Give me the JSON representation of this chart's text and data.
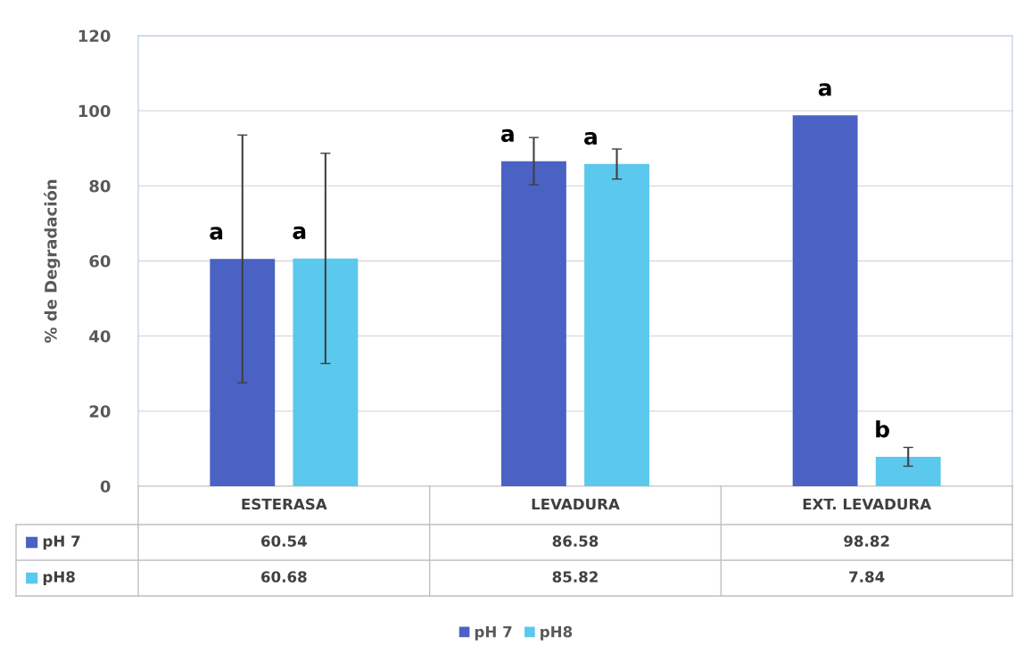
{
  "chart_data": {
    "type": "bar",
    "ylabel": "% de Degradación",
    "categories": [
      "ESTERASA",
      "LEVADURA",
      "EXT. LEVADURA"
    ],
    "series": [
      {
        "name": "pH 7",
        "color": "#4a62c4",
        "values": [
          60.54,
          86.58,
          98.82
        ],
        "errors": [
          33,
          6.3,
          null
        ]
      },
      {
        "name": "pH8",
        "color": "#5bc8ee",
        "values": [
          60.68,
          85.82,
          7.84
        ],
        "errors": [
          28,
          4,
          2.5
        ]
      }
    ],
    "ylim": [
      0,
      120
    ],
    "yticks": [
      0,
      20,
      40,
      60,
      80,
      100,
      120
    ],
    "grid": "y",
    "legend": "bottom",
    "data_labels": true,
    "annotations": [
      "a",
      "a",
      "a",
      "a",
      "a",
      "b"
    ]
  }
}
